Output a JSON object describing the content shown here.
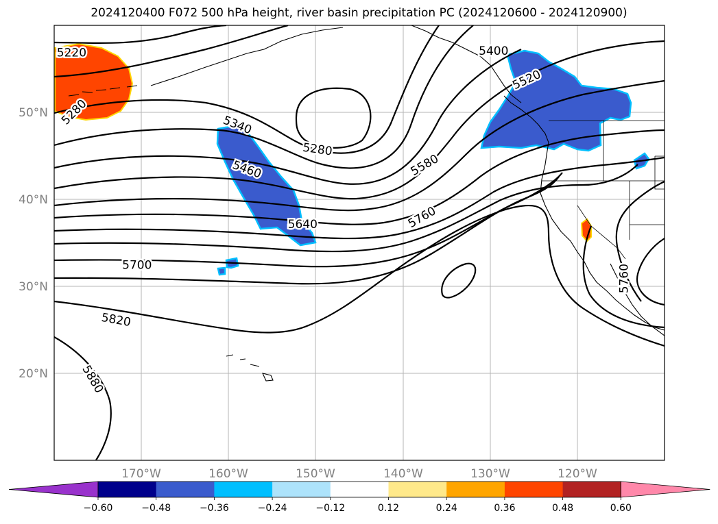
{
  "title": "2024120400 F072 500 hPa height, river basin precipitation PC (2024120600 - 2024120900)",
  "map": {
    "projection": "lat-lon",
    "lon_range": [
      -180,
      -110
    ],
    "lat_range": [
      10,
      60
    ],
    "gridlines": true,
    "lat_ticks": [
      {
        "lat": 50,
        "label": "50°N"
      },
      {
        "lat": 40,
        "label": "40°N"
      },
      {
        "lat": 30,
        "label": "30°N"
      },
      {
        "lat": 20,
        "label": "20°N"
      }
    ],
    "lon_ticks": [
      {
        "lon": -170,
        "label": "170°W"
      },
      {
        "lon": -160,
        "label": "160°W"
      },
      {
        "lon": -150,
        "label": "150°W"
      },
      {
        "lon": -140,
        "label": "140°W"
      },
      {
        "lon": -130,
        "label": "130°W"
      },
      {
        "lon": -120,
        "label": "120°W"
      }
    ],
    "tick_label_color": "#808080"
  },
  "contour_labels": [
    {
      "text": "5220",
      "lon": -178,
      "lat": 56.8,
      "angle": 0
    },
    {
      "text": "5280",
      "lon": -177.7,
      "lat": 50.0,
      "angle": -45
    },
    {
      "text": "5340",
      "lon": -159.0,
      "lat": 48.5,
      "angle": 22
    },
    {
      "text": "5280",
      "lon": -149.8,
      "lat": 45.7,
      "angle": 8
    },
    {
      "text": "5460",
      "lon": -157.9,
      "lat": 43.4,
      "angle": 20
    },
    {
      "text": "5640",
      "lon": -151.5,
      "lat": 37.1,
      "angle": 0
    },
    {
      "text": "5700",
      "lon": -170.5,
      "lat": 32.4,
      "angle": 0
    },
    {
      "text": "5820",
      "lon": -172.9,
      "lat": 26.1,
      "angle": 10
    },
    {
      "text": "5880",
      "lon": -175.6,
      "lat": 19.3,
      "angle": 60
    },
    {
      "text": "5760",
      "lon": -137.8,
      "lat": 37.9,
      "angle": -30
    },
    {
      "text": "5580",
      "lon": -137.5,
      "lat": 43.9,
      "angle": -30
    },
    {
      "text": "5520",
      "lon": -125.8,
      "lat": 53.7,
      "angle": -25
    },
    {
      "text": "5400",
      "lon": -129.6,
      "lat": 57.0,
      "angle": 0
    },
    {
      "text": "5760",
      "lon": -114.6,
      "lat": 30.9,
      "angle": -90
    }
  ],
  "precip_colorbar": {
    "colors": [
      "#9932cc",
      "#00008b",
      "#3a5bcd",
      "#00bfff",
      "#ade3fb",
      "#ffffff",
      "#ffe98a",
      "#ffa500",
      "#ff4500",
      "#b22222",
      "#ff88aa"
    ],
    "tick_labels": [
      "−0.60",
      "−0.48",
      "−0.36",
      "−0.24",
      "−0.12",
      "0.12",
      "0.24",
      "0.36",
      "0.48",
      "0.60"
    ],
    "extend": "both"
  },
  "precip_fill_colors": {
    "strong_negative": "#3a5bcd",
    "negative_edge": "#00bfff",
    "strong_positive": "#ff4500",
    "positive_edge": "#ffd700"
  }
}
